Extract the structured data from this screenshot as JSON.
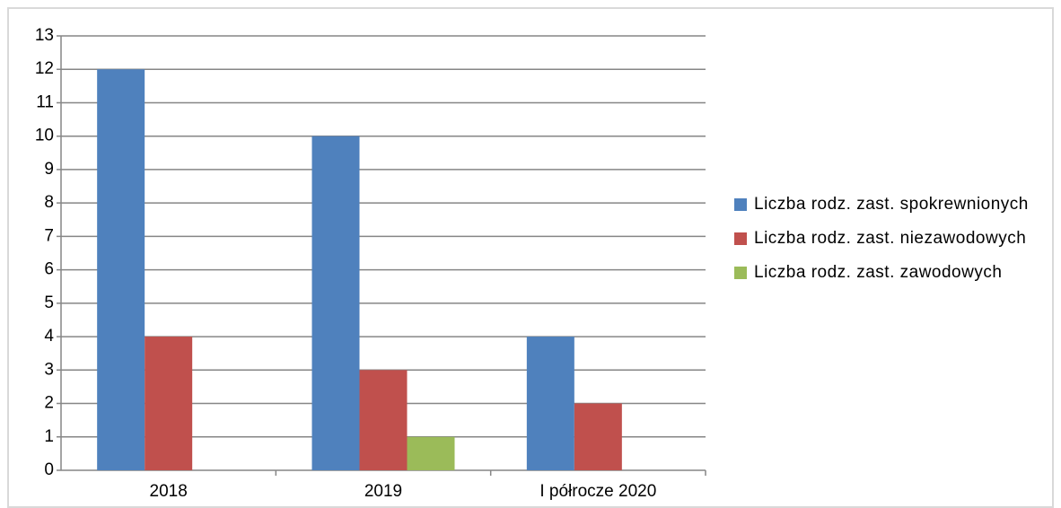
{
  "chart_data": {
    "type": "bar",
    "categories": [
      "2018",
      "2019",
      "I półrocze 2020"
    ],
    "series": [
      {
        "name": "Liczba rodz. zast. spokrew­nionych",
        "color": "#4f81bd",
        "values": [
          12,
          10,
          4
        ]
      },
      {
        "name": "Liczba rodz. zast. niezawo­dowych",
        "color": "#c0504d",
        "values": [
          4,
          3,
          2
        ]
      },
      {
        "name": "Liczba rodz. zast. zawodowych",
        "color": "#9bbb59",
        "values": [
          0,
          1,
          0
        ]
      }
    ],
    "ylim": [
      0,
      13
    ],
    "yticks": [
      0,
      1,
      2,
      3,
      4,
      5,
      6,
      7,
      8,
      9,
      10,
      11,
      12,
      13
    ],
    "grid": true,
    "legend": "right"
  }
}
